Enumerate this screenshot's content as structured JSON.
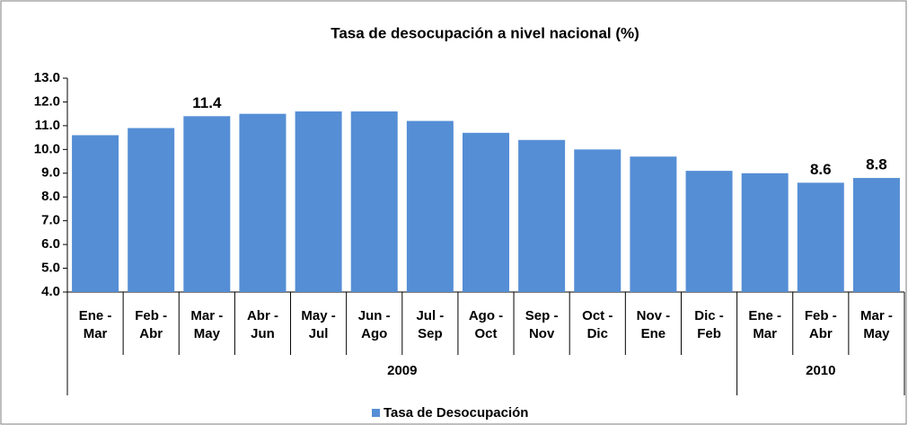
{
  "chart_data": {
    "type": "bar",
    "title": "Tasa de desocupación a nivel nacional (%)",
    "categories": [
      "Ene - Mar",
      "Feb - Abr",
      "Mar - May",
      "Abr - Jun",
      "May - Jul",
      "Jun - Ago",
      "Jul - Sep",
      "Ago - Oct",
      "Sep - Nov",
      "Oct - Dic",
      "Nov - Ene",
      "Dic - Feb",
      "Ene - Mar",
      "Feb - Abr",
      "Mar - May"
    ],
    "groups": [
      {
        "label": "2009",
        "span": 12
      },
      {
        "label": "2010",
        "span": 3
      }
    ],
    "series": [
      {
        "name": "Tasa de Desocupación",
        "color": "#558ed5",
        "values": [
          10.6,
          10.9,
          11.4,
          11.5,
          11.6,
          11.6,
          11.2,
          10.7,
          10.4,
          10.0,
          9.7,
          9.1,
          9.0,
          8.6,
          8.8
        ],
        "value_labels": [
          null,
          null,
          "11.4",
          null,
          null,
          null,
          null,
          null,
          null,
          null,
          null,
          null,
          null,
          "8.6",
          "8.8"
        ]
      }
    ],
    "ylim": [
      4,
      13
    ],
    "yticks": [
      {
        "value": 4,
        "label": "4.0"
      },
      {
        "value": 5,
        "label": "5.0"
      },
      {
        "value": 6,
        "label": "6.0"
      },
      {
        "value": 7,
        "label": "7.0"
      },
      {
        "value": 8,
        "label": "8.0"
      },
      {
        "value": 9,
        "label": "9.0"
      },
      {
        "value": 10,
        "label": "10.0"
      },
      {
        "value": 11,
        "label": "11.0"
      },
      {
        "value": 12,
        "label": "12.0"
      },
      {
        "value": 13,
        "label": "13.0"
      }
    ],
    "grid": false,
    "legend": "bottom"
  }
}
